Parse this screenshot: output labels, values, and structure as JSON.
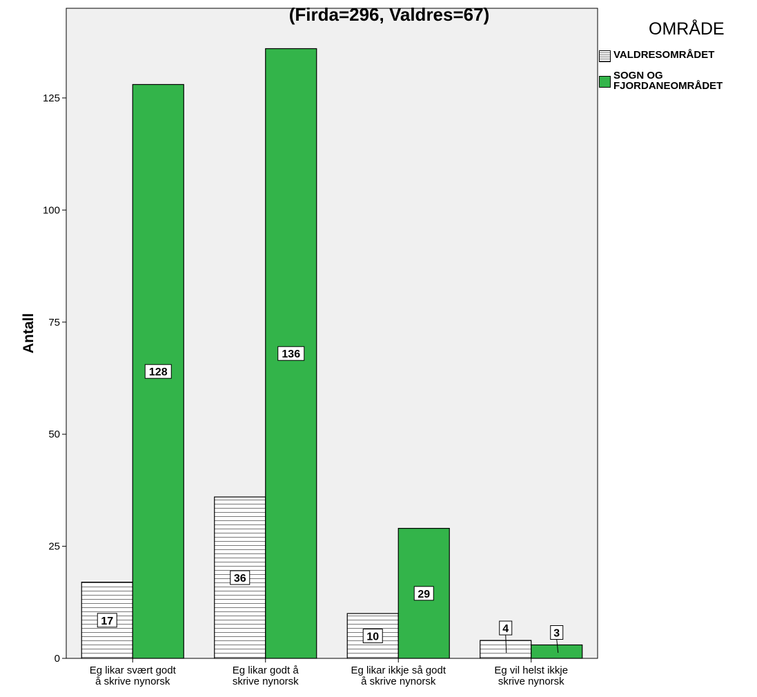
{
  "chart_data": {
    "type": "bar",
    "subtitle": "(Firda=296, Valdres=67)",
    "ylabel": "Antall",
    "xlabel": "",
    "ylim": [
      0,
      145
    ],
    "yticks": [
      0,
      25,
      50,
      75,
      100,
      125
    ],
    "categories": [
      "Eg likar svært godt å skrive nynorsk",
      "Eg likar godt å skrive nynorsk",
      "Eg likar ikkje så godt å skrive nynorsk",
      "Eg vil helst ikkje skrive nynorsk"
    ],
    "category_lines": [
      [
        "Eg likar svært godt",
        "å skrive nynorsk"
      ],
      [
        "Eg likar godt å",
        "skrive nynorsk"
      ],
      [
        "Eg likar ikkje så godt",
        "å skrive nynorsk"
      ],
      [
        "Eg vil helst ikkje",
        "skrive nynorsk"
      ]
    ],
    "legend_title": "OMRÅDE",
    "legend_position": "top-right",
    "grid": false,
    "series": [
      {
        "name": "VALDRESOMRÅDET",
        "values": [
          17,
          36,
          10,
          4
        ],
        "color": "#ffffff",
        "pattern": "horizontal-stripes"
      },
      {
        "name": "SOGN OG FJORDANEOMRÅDET",
        "values": [
          128,
          136,
          29,
          3
        ],
        "color": "#33b44a",
        "pattern": "solid"
      }
    ]
  },
  "colors": {
    "plot_background": "#f0f0f0",
    "stripe": "#777777",
    "green": "#33b44a"
  }
}
